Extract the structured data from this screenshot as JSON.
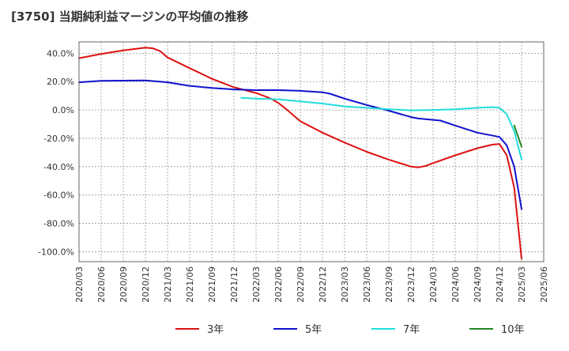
{
  "chart_data": {
    "type": "line",
    "title": "[3750]  当期純利益マージンの平均値の推移",
    "xlabel": "",
    "ylabel": "",
    "ylim": [
      -107,
      48
    ],
    "yticks": [
      40,
      20,
      0,
      -20,
      -40,
      -60,
      -80,
      -100
    ],
    "ytick_labels": [
      "40.0%",
      "20.0%",
      "0.0%",
      "-20.0%",
      "-40.0%",
      "-60.0%",
      "-80.0%",
      "-100.0%"
    ],
    "xlim": [
      "2020-03",
      "2025-06"
    ],
    "xtick_labels": [
      "2020/03",
      "2020/06",
      "2020/09",
      "2020/12",
      "2021/03",
      "2021/06",
      "2021/09",
      "2021/12",
      "2022/03",
      "2022/06",
      "2022/09",
      "2022/12",
      "2023/03",
      "2023/06",
      "2023/09",
      "2023/12",
      "2024/03",
      "2024/06",
      "2024/09",
      "2024/12",
      "2025/03",
      "2025/06"
    ],
    "grid": true,
    "legend_position": "bottom",
    "series": [
      {
        "name": "3年",
        "color": "#dd1111",
        "points": [
          [
            "2020-03",
            36.5
          ],
          [
            "2020-06",
            39.5
          ],
          [
            "2020-09",
            42
          ],
          [
            "2020-12",
            44
          ],
          [
            "2021-01",
            43.5
          ],
          [
            "2021-02",
            41.5
          ],
          [
            "2021-03",
            37
          ],
          [
            "2021-06",
            29.5
          ],
          [
            "2021-09",
            22
          ],
          [
            "2021-12",
            16
          ],
          [
            "2022-03",
            12
          ],
          [
            "2022-05",
            8
          ],
          [
            "2022-06",
            5
          ],
          [
            "2022-07",
            1
          ],
          [
            "2022-09",
            -8
          ],
          [
            "2022-12",
            -16
          ],
          [
            "2023-03",
            -23
          ],
          [
            "2023-06",
            -29.5
          ],
          [
            "2023-09",
            -35
          ],
          [
            "2023-12",
            -40
          ],
          [
            "2024-01",
            -40.5
          ],
          [
            "2024-02",
            -39.5
          ],
          [
            "2024-03",
            -37.5
          ],
          [
            "2024-06",
            -32
          ],
          [
            "2024-09",
            -27
          ],
          [
            "2024-11",
            -24.5
          ],
          [
            "2024-12",
            -24
          ],
          [
            "2025-01",
            -32
          ],
          [
            "2025-02",
            -55
          ],
          [
            "2025-03",
            -105
          ]
        ]
      },
      {
        "name": "5年",
        "color": "#1111cc",
        "points": [
          [
            "2020-03",
            19.5
          ],
          [
            "2020-06",
            20.5
          ],
          [
            "2020-09",
            20.7
          ],
          [
            "2020-12",
            20.8
          ],
          [
            "2021-03",
            19.5
          ],
          [
            "2021-06",
            17
          ],
          [
            "2021-09",
            15.5
          ],
          [
            "2021-12",
            14.5
          ],
          [
            "2022-03",
            14
          ],
          [
            "2022-06",
            14
          ],
          [
            "2022-09",
            13.5
          ],
          [
            "2022-12",
            12.5
          ],
          [
            "2023-01",
            11.5
          ],
          [
            "2023-03",
            8
          ],
          [
            "2023-06",
            3.5
          ],
          [
            "2023-09",
            -0.5
          ],
          [
            "2023-12",
            -5
          ],
          [
            "2024-01",
            -6
          ],
          [
            "2024-03",
            -7
          ],
          [
            "2024-04",
            -7.5
          ],
          [
            "2024-06",
            -11
          ],
          [
            "2024-09",
            -16
          ],
          [
            "2024-12",
            -19
          ],
          [
            "2025-01",
            -25
          ],
          [
            "2025-02",
            -40
          ],
          [
            "2025-03",
            -70
          ]
        ]
      },
      {
        "name": "7年",
        "color": "#22dddd",
        "points": [
          [
            "2022-01",
            8.5
          ],
          [
            "2022-03",
            8
          ],
          [
            "2022-06",
            7.5
          ],
          [
            "2022-09",
            6
          ],
          [
            "2022-12",
            4.5
          ],
          [
            "2023-03",
            2.5
          ],
          [
            "2023-06",
            1.5
          ],
          [
            "2023-09",
            0.5
          ],
          [
            "2023-12",
            -0.3
          ],
          [
            "2024-03",
            0
          ],
          [
            "2024-06",
            0.5
          ],
          [
            "2024-09",
            1.5
          ],
          [
            "2024-11",
            2
          ],
          [
            "2024-12",
            1.5
          ],
          [
            "2025-01",
            -3
          ],
          [
            "2025-02",
            -15
          ],
          [
            "2025-03",
            -35
          ]
        ]
      },
      {
        "name": "10年",
        "color": "#228822",
        "points": [
          [
            "2025-02",
            -11
          ],
          [
            "2025-03",
            -26
          ]
        ]
      }
    ]
  }
}
